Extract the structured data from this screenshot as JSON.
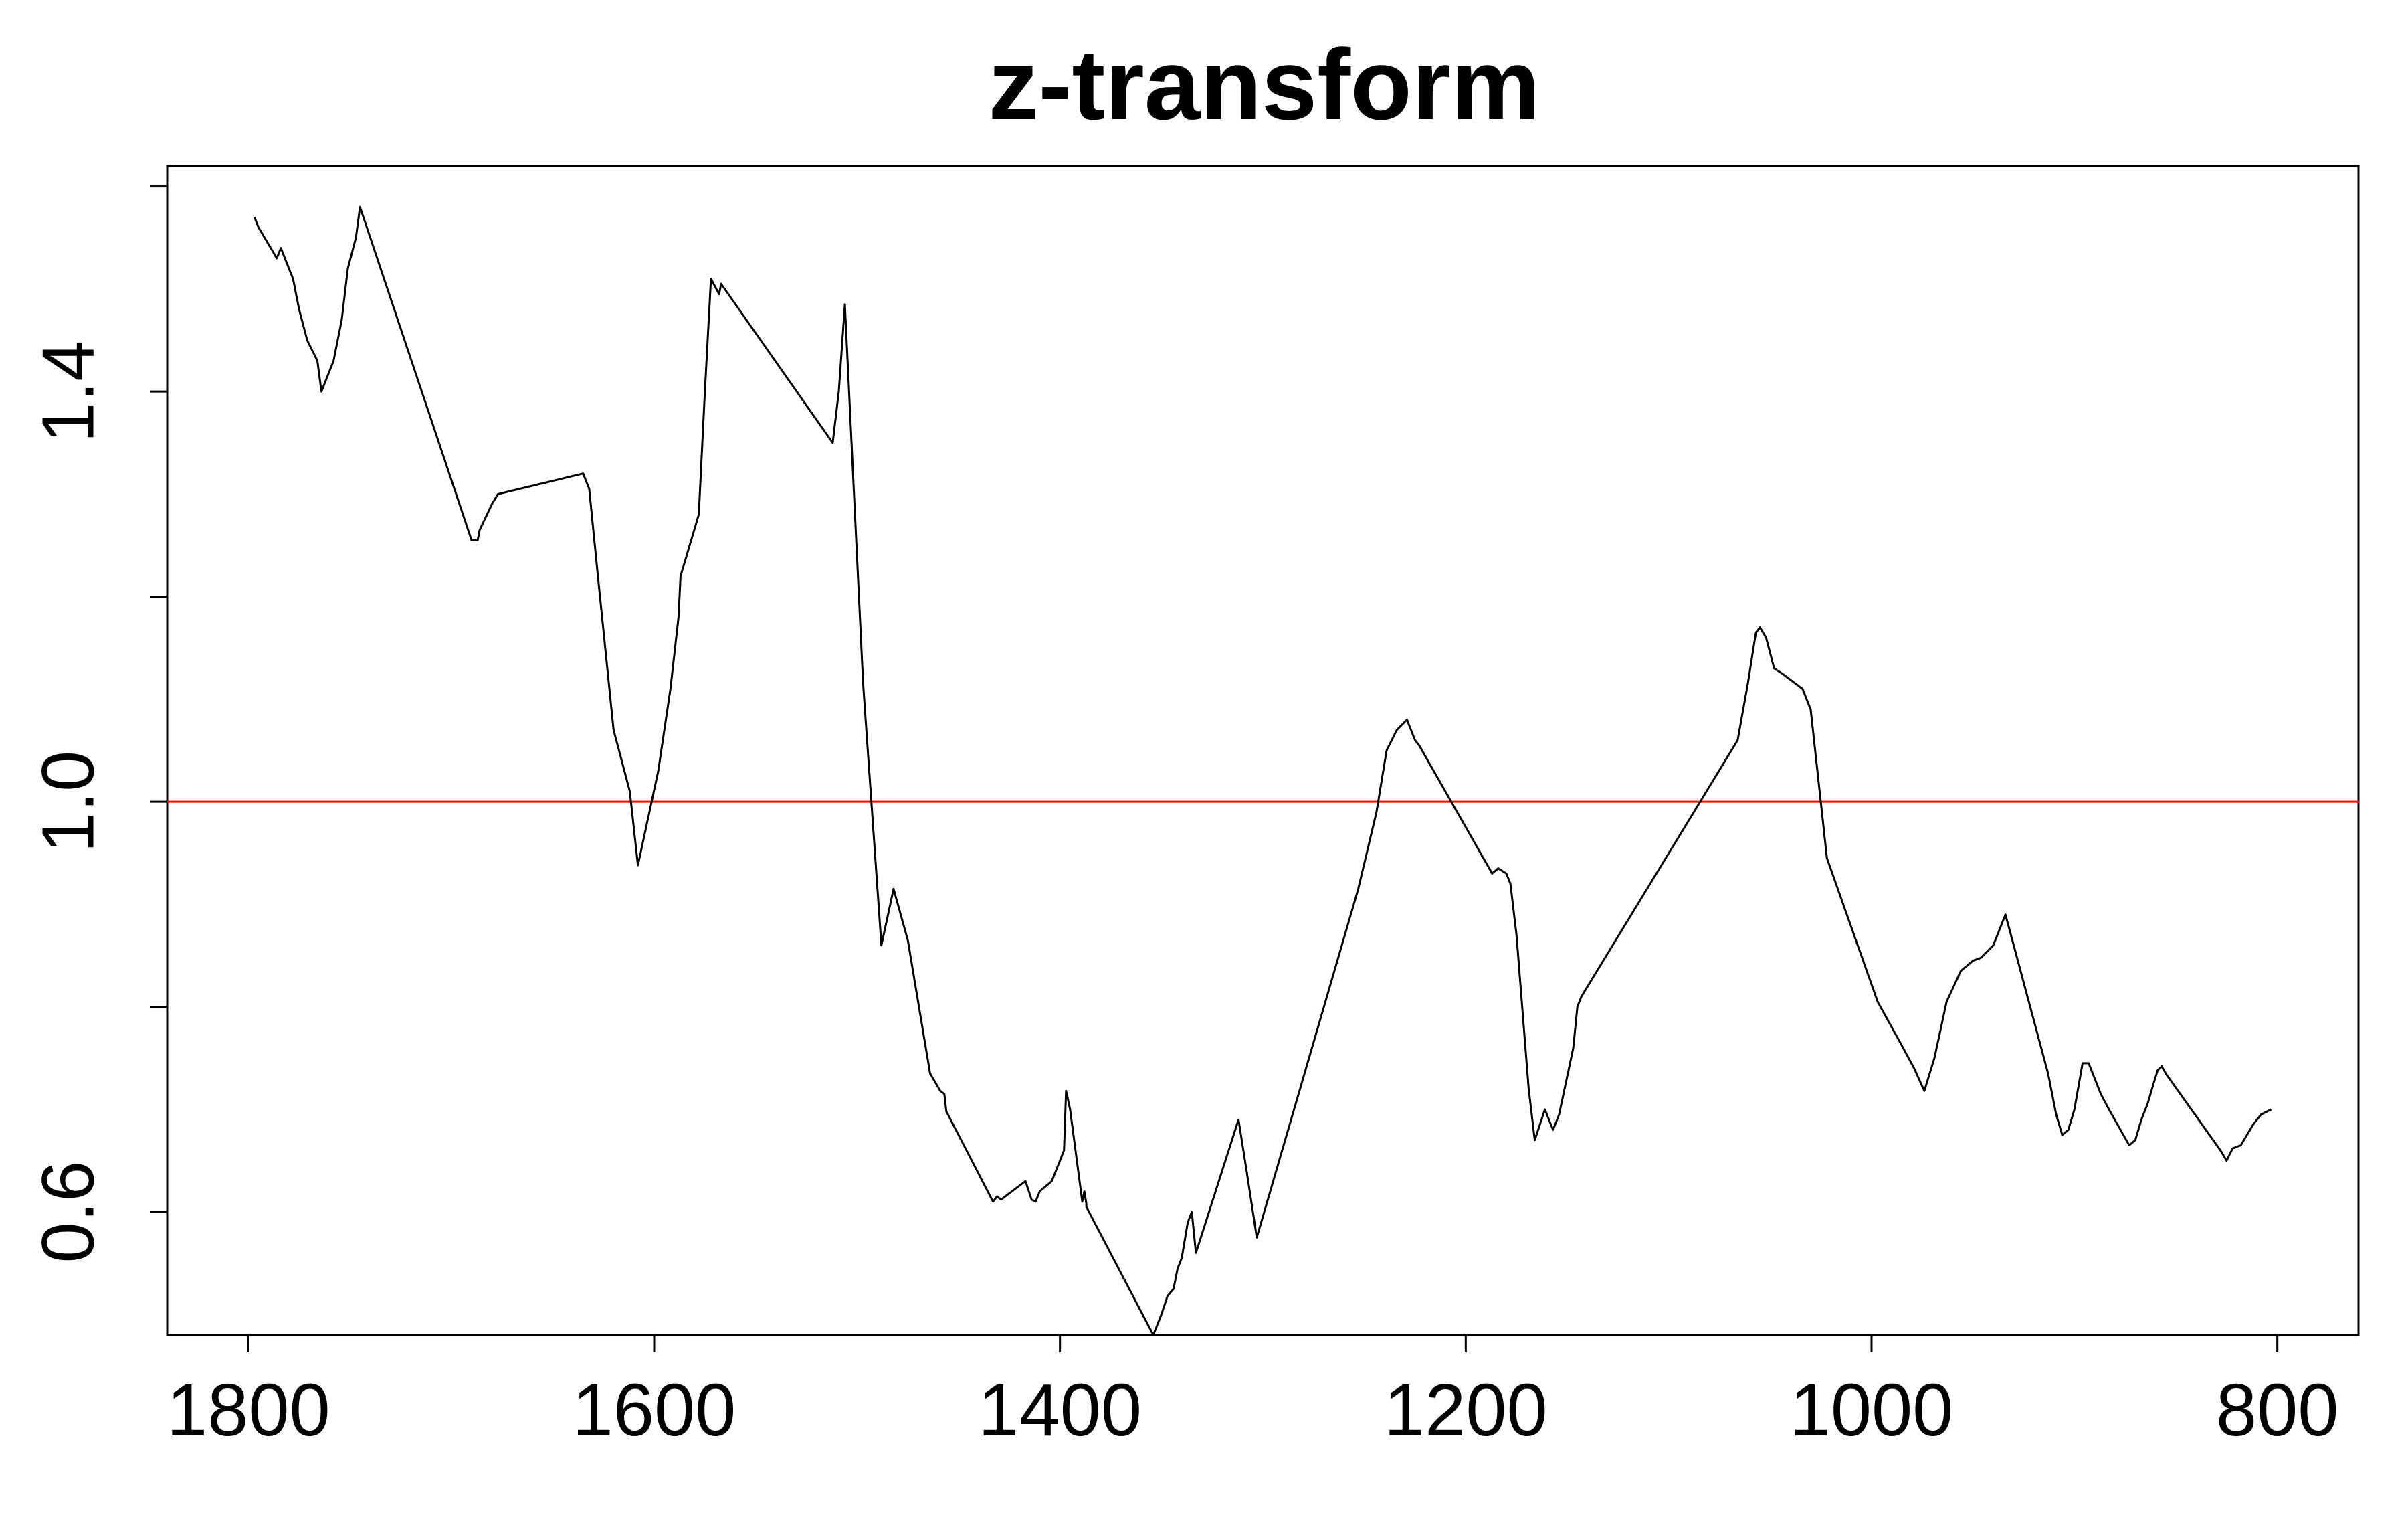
{
  "chart_data": {
    "type": "line",
    "title": "z-transform",
    "xlabel": "",
    "ylabel": "",
    "x_reversed": true,
    "xlim": [
      1840,
      760
    ],
    "ylim": [
      0.48,
      1.62
    ],
    "xticks": [
      1800,
      1600,
      1400,
      1200,
      1000,
      800
    ],
    "xtick_labels": [
      "1800",
      "1600",
      "1400",
      "1200",
      "1000",
      "800"
    ],
    "yticks": [
      0.6,
      0.8,
      1.0,
      1.2,
      1.4,
      1.6
    ],
    "ytick_labels": [
      "0.6",
      "",
      "1.0",
      "",
      "1.4",
      ""
    ],
    "grid": false,
    "reference_line": {
      "y": 1.0,
      "color": "#ff0000"
    },
    "series": [
      {
        "color": "#000000",
        "x": [
          1797,
          1795,
          1786,
          1784,
          1782,
          1778,
          1775,
          1771,
          1766,
          1764,
          1762,
          1758,
          1754,
          1751,
          1747,
          1745,
          1690,
          1687,
          1686,
          1680,
          1677,
          1635,
          1632,
          1628,
          1620,
          1612,
          1608,
          1598,
          1592,
          1588,
          1587,
          1578,
          1575,
          1572,
          1568,
          1567,
          1512,
          1509,
          1506,
          1497,
          1488,
          1482,
          1475,
          1464,
          1459,
          1457,
          1456,
          1433,
          1431,
          1429,
          1417,
          1414,
          1412,
          1410,
          1404,
          1398,
          1397,
          1395,
          1389,
          1388,
          1387,
          1387,
          1354,
          1350,
          1347,
          1344,
          1342,
          1340,
          1337,
          1335,
          1333,
          1312,
          1308,
          1303,
          1253,
          1244,
          1239,
          1234,
          1229,
          1225,
          1223,
          1187,
          1184,
          1180,
          1178,
          1175,
          1169,
          1166,
          1163,
          1161,
          1157,
          1154,
          1147,
          1145,
          1143,
          1066,
          1061,
          1057,
          1055,
          1052,
          1048,
          1044,
          1034,
          1032,
          1030,
          1022,
          997,
          985,
          979,
          974,
          969,
          963,
          956,
          950,
          946,
          940,
          934,
          913,
          909,
          906,
          903,
          900,
          896,
          893,
          887,
          883,
          873,
          870,
          867,
          864,
          861,
          859,
          857,
          855,
          828,
          825,
          822,
          818,
          812,
          808,
          803
        ],
        "values": [
          1.57,
          1.56,
          1.53,
          1.54,
          1.53,
          1.51,
          1.48,
          1.45,
          1.43,
          1.4,
          1.41,
          1.43,
          1.47,
          1.52,
          1.55,
          1.58,
          1.255,
          1.255,
          1.265,
          1.29,
          1.3,
          1.32,
          1.305,
          1.225,
          1.07,
          1.01,
          0.938,
          1.03,
          1.11,
          1.18,
          1.22,
          1.28,
          1.4,
          1.51,
          1.495,
          1.505,
          1.35,
          1.4,
          1.485,
          1.115,
          0.86,
          0.915,
          0.865,
          0.735,
          0.718,
          0.715,
          0.698,
          0.61,
          0.615,
          0.612,
          0.63,
          0.612,
          0.61,
          0.62,
          0.63,
          0.66,
          0.718,
          0.7,
          0.61,
          0.62,
          0.608,
          0.605,
          0.48,
          0.5,
          0.518,
          0.525,
          0.545,
          0.555,
          0.59,
          0.6,
          0.56,
          0.69,
          0.64,
          0.575,
          0.915,
          0.99,
          1.05,
          1.07,
          1.08,
          1.06,
          1.055,
          0.93,
          0.935,
          0.93,
          0.92,
          0.87,
          0.72,
          0.67,
          0.688,
          0.7,
          0.68,
          0.695,
          0.76,
          0.8,
          0.81,
          1.06,
          1.115,
          1.165,
          1.17,
          1.16,
          1.13,
          1.125,
          1.11,
          1.1,
          1.09,
          0.945,
          0.805,
          0.762,
          0.74,
          0.718,
          0.75,
          0.805,
          0.835,
          0.845,
          0.848,
          0.86,
          0.89,
          0.735,
          0.695,
          0.675,
          0.68,
          0.7,
          0.745,
          0.745,
          0.715,
          0.7,
          0.665,
          0.67,
          0.69,
          0.705,
          0.725,
          0.738,
          0.742,
          0.735,
          0.66,
          0.65,
          0.662,
          0.665,
          0.685,
          0.695,
          0.7
        ]
      }
    ]
  }
}
